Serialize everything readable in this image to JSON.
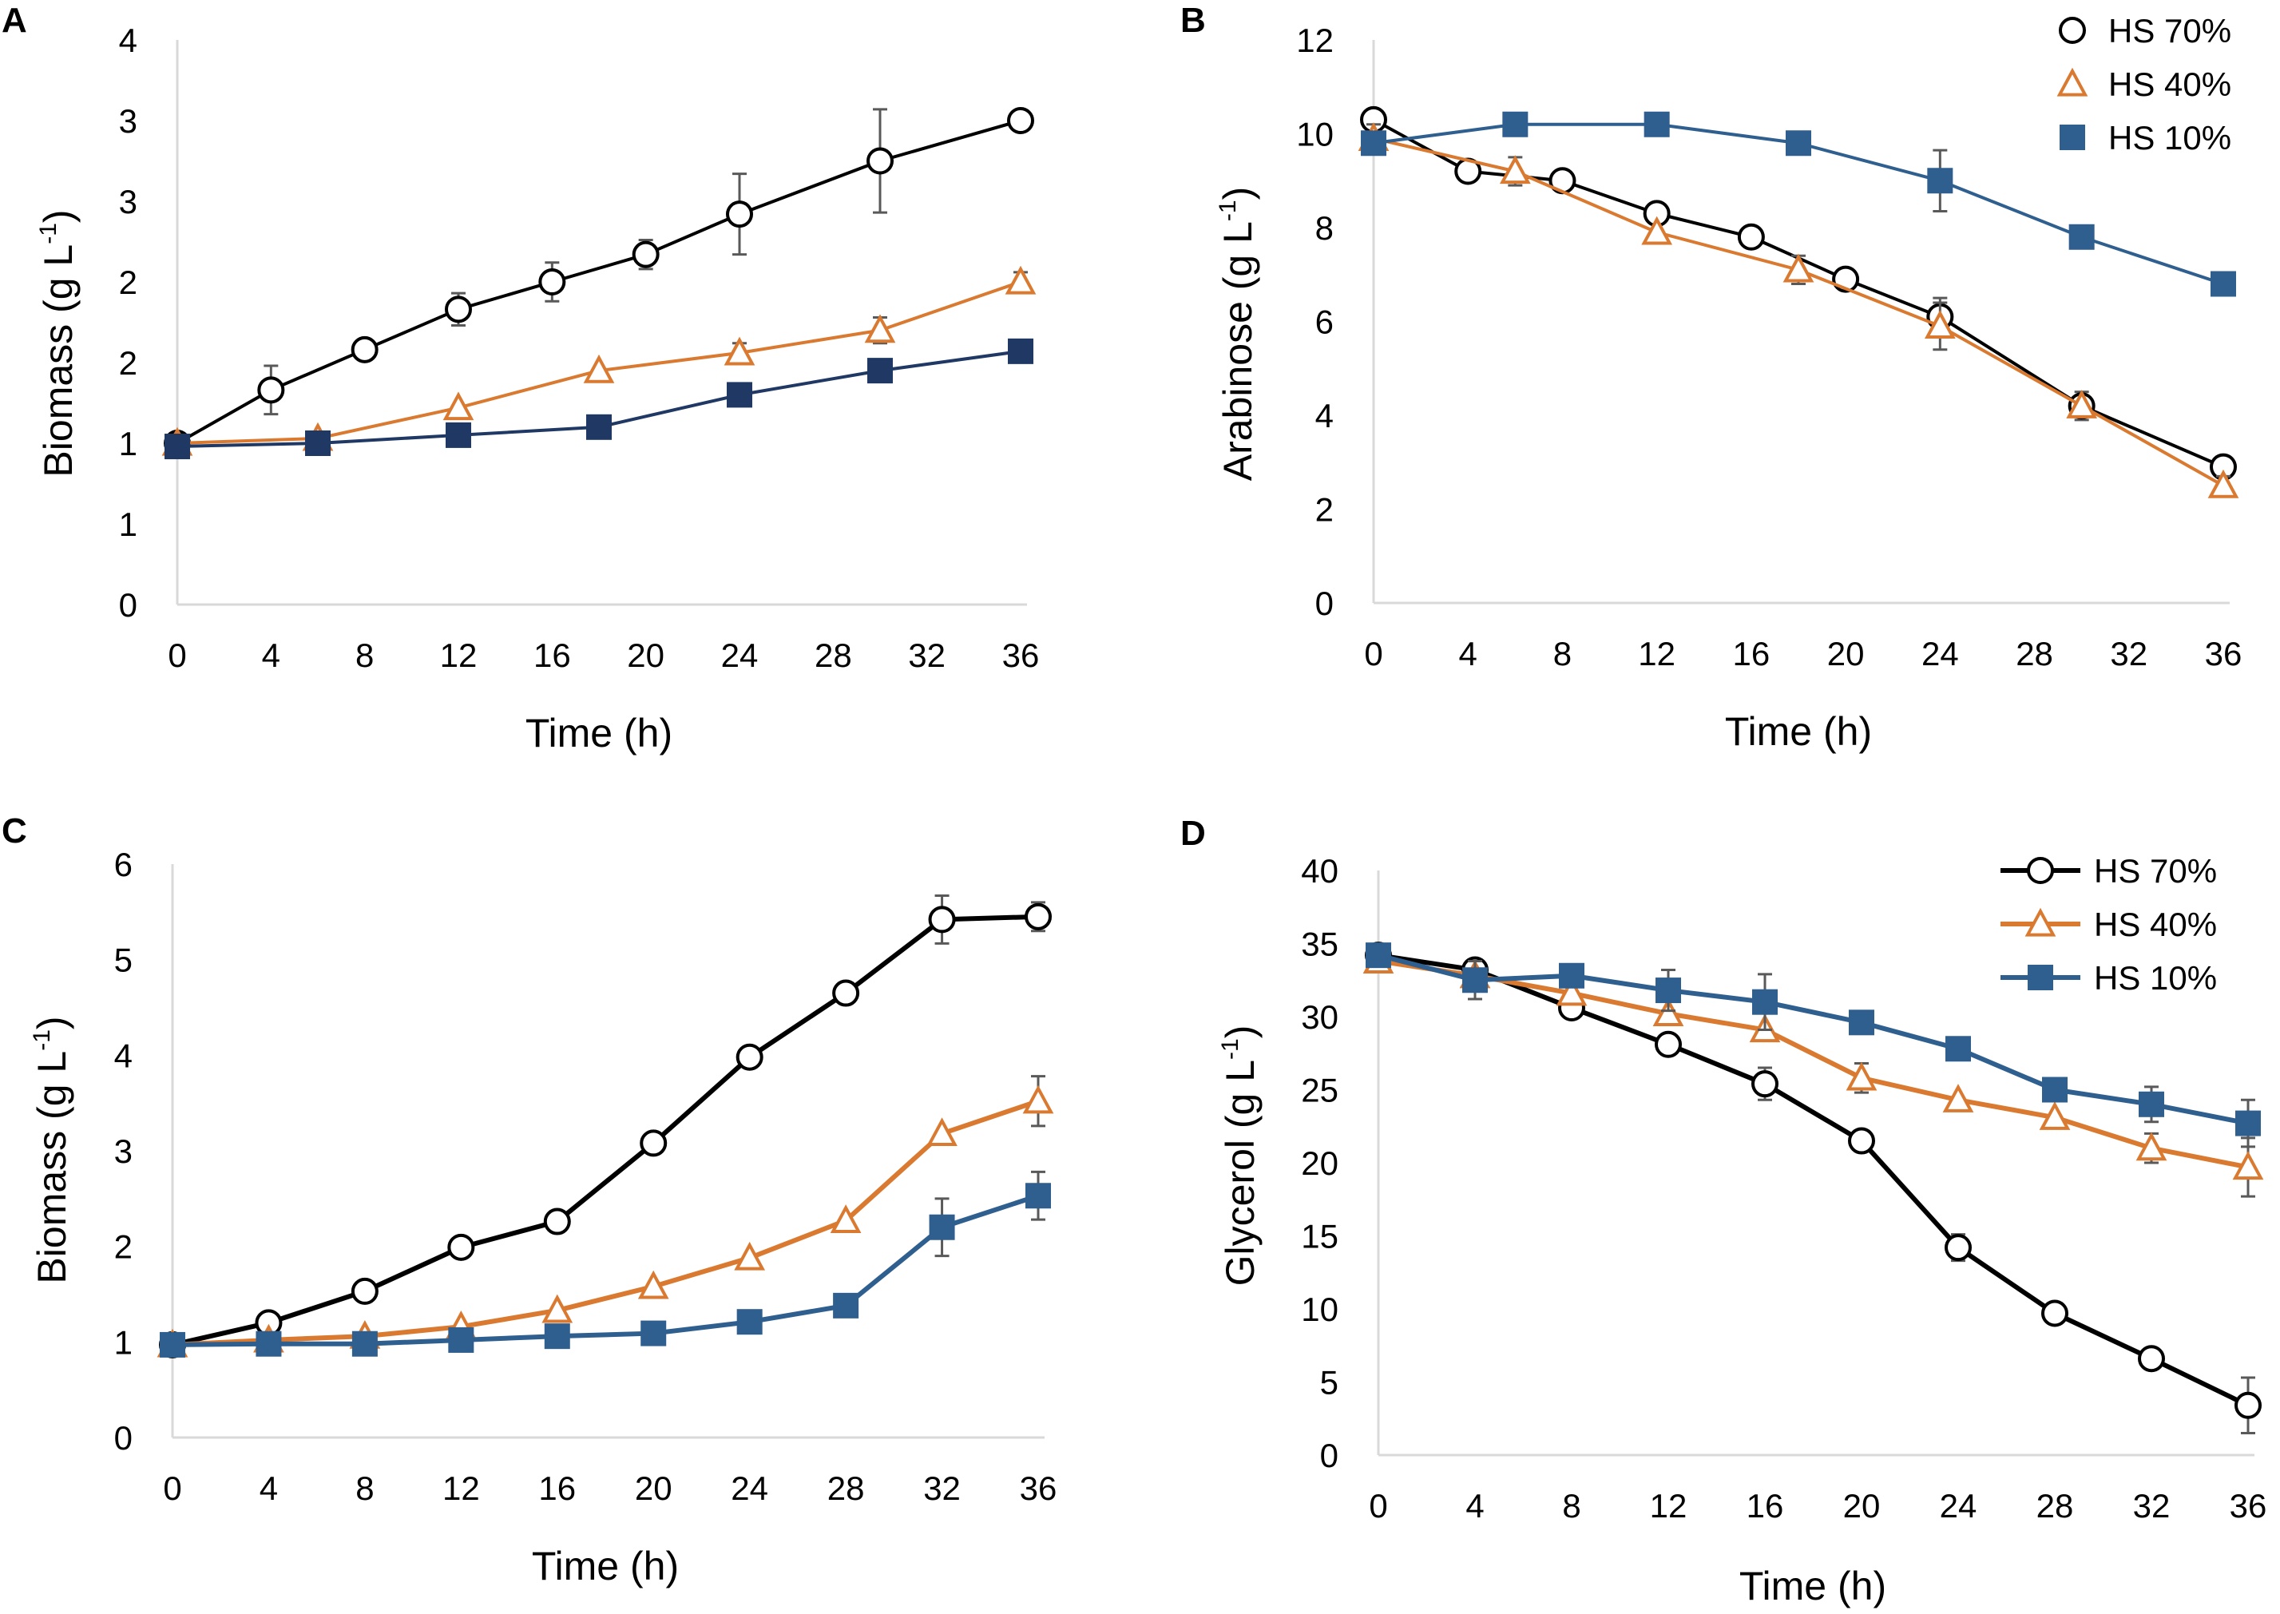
{
  "colors": {
    "hs70": "#000000",
    "hs40": "#d97a30",
    "hs10_panelA": "#1f3864",
    "hs10_other": "#2f5f8f",
    "axis": "#d9d9d9",
    "errorbar": "#595959"
  },
  "chart_data": [
    {
      "panel": "A",
      "type": "line",
      "xlabel": "Time (h)",
      "ylabel": "Biomass (g L-1)",
      "ylabel_base": "Biomass (g L",
      "ylabel_sup": "-1",
      "ylabel_close": ")",
      "xlim": [
        0,
        36
      ],
      "ylim": [
        0,
        3.5
      ],
      "x_ticks": [
        0,
        4,
        8,
        12,
        16,
        20,
        24,
        28,
        32,
        36
      ],
      "x_tick_labels": [
        "0",
        "4",
        "8",
        "12",
        "16",
        "20",
        "24",
        "28",
        "32",
        "36"
      ],
      "y_ticks": [
        0,
        0.5,
        1,
        1.5,
        2,
        2.5,
        3,
        3.5
      ],
      "y_tick_labels": [
        "0",
        "1",
        "1",
        "2",
        "2",
        "3",
        "3",
        "4"
      ],
      "legend": null,
      "series": [
        {
          "name": "HS 70%",
          "marker": "circle",
          "x": [
            0,
            4,
            8,
            12,
            16,
            20,
            24,
            30,
            36
          ],
          "y": [
            1.0,
            1.33,
            1.58,
            1.83,
            2.0,
            2.17,
            2.42,
            2.75,
            3.0
          ],
          "err": [
            0,
            0.15,
            0,
            0.1,
            0.12,
            0.09,
            0.25,
            0.32,
            0
          ]
        },
        {
          "name": "HS 40%",
          "marker": "triangle",
          "x": [
            0,
            6,
            12,
            18,
            24,
            30,
            36
          ],
          "y": [
            1.0,
            1.03,
            1.22,
            1.45,
            1.56,
            1.7,
            2.0
          ],
          "err": [
            0,
            0,
            0,
            0,
            0.06,
            0.08,
            0.06
          ]
        },
        {
          "name": "HS 10%",
          "marker": "square",
          "x": [
            0,
            6,
            12,
            18,
            24,
            30,
            36
          ],
          "y": [
            0.98,
            1.0,
            1.05,
            1.1,
            1.3,
            1.45,
            1.57
          ],
          "err": [
            0,
            0,
            0,
            0,
            0,
            0,
            0
          ]
        }
      ]
    },
    {
      "panel": "B",
      "type": "line",
      "xlabel": "Time (h)",
      "ylabel": "Arabinose (g L-1)",
      "ylabel_base": "Arabinose (g L",
      "ylabel_sup": "-1",
      "ylabel_close": ")",
      "xlim": [
        0,
        36
      ],
      "ylim": [
        0,
        12
      ],
      "x_ticks": [
        0,
        4,
        8,
        12,
        16,
        20,
        24,
        28,
        32,
        36
      ],
      "x_tick_labels": [
        "0",
        "4",
        "8",
        "12",
        "16",
        "20",
        "24",
        "28",
        "32",
        "36"
      ],
      "y_ticks": [
        0,
        2,
        4,
        6,
        8,
        10,
        12
      ],
      "y_tick_labels": [
        "0",
        "2",
        "4",
        "6",
        "8",
        "10",
        "12"
      ],
      "legend": {
        "placement": "top-right",
        "style": "markers-only",
        "entries": [
          "HS 70%",
          "HS 40%",
          "HS 10%"
        ]
      },
      "series": [
        {
          "name": "HS 70%",
          "marker": "circle",
          "x": [
            0,
            4,
            8,
            12,
            16,
            20,
            24,
            30,
            36
          ],
          "y": [
            10.3,
            9.2,
            9.0,
            8.3,
            7.8,
            6.9,
            6.1,
            4.2,
            2.9
          ],
          "err": [
            0,
            0,
            0,
            0,
            0,
            0,
            0.4,
            0.3,
            0
          ]
        },
        {
          "name": "HS 40%",
          "marker": "triangle",
          "x": [
            0,
            6,
            12,
            18,
            24,
            30,
            36
          ],
          "y": [
            9.9,
            9.2,
            7.9,
            7.1,
            5.9,
            4.2,
            2.5
          ],
          "err": [
            0.3,
            0.3,
            0,
            0.3,
            0.5,
            0,
            0.2
          ]
        },
        {
          "name": "HS 10%",
          "marker": "square",
          "x": [
            0,
            6,
            12,
            18,
            24,
            30,
            36
          ],
          "y": [
            9.8,
            10.2,
            10.2,
            9.8,
            9.0,
            7.8,
            6.8
          ],
          "err": [
            0,
            0,
            0,
            0,
            0.65,
            0,
            0
          ]
        }
      ]
    },
    {
      "panel": "C",
      "type": "line",
      "xlabel": "Time (h)",
      "ylabel": "Biomass (g L-1)",
      "ylabel_base": "Biomass (g L",
      "ylabel_sup": "-1",
      "ylabel_close": ")",
      "xlim": [
        0,
        36
      ],
      "ylim": [
        0,
        6
      ],
      "x_ticks": [
        0,
        4,
        8,
        12,
        16,
        20,
        24,
        28,
        32,
        36
      ],
      "x_tick_labels": [
        "0",
        "4",
        "8",
        "12",
        "16",
        "20",
        "24",
        "28",
        "32",
        "36"
      ],
      "y_ticks": [
        0,
        1,
        2,
        3,
        4,
        5,
        6
      ],
      "y_tick_labels": [
        "0",
        "1",
        "2",
        "3",
        "4",
        "5",
        "6"
      ],
      "legend": null,
      "series": [
        {
          "name": "HS 70%",
          "marker": "circle",
          "x": [
            0,
            4,
            8,
            12,
            16,
            20,
            24,
            28,
            32,
            36
          ],
          "y": [
            0.97,
            1.2,
            1.53,
            1.99,
            2.26,
            3.08,
            3.98,
            4.65,
            5.42,
            5.45
          ],
          "err": [
            0,
            0,
            0,
            0,
            0,
            0,
            0,
            0,
            0.25,
            0.15
          ]
        },
        {
          "name": "HS 40%",
          "marker": "triangle",
          "x": [
            0,
            4,
            8,
            12,
            16,
            20,
            24,
            28,
            32,
            36
          ],
          "y": [
            0.97,
            1.02,
            1.06,
            1.16,
            1.33,
            1.58,
            1.88,
            2.27,
            3.18,
            3.52
          ],
          "err": [
            0,
            0,
            0,
            0,
            0,
            0,
            0,
            0,
            0,
            0.26
          ]
        },
        {
          "name": "HS 10%",
          "marker": "square",
          "x": [
            0,
            4,
            8,
            12,
            16,
            20,
            24,
            28,
            32,
            36
          ],
          "y": [
            0.97,
            0.98,
            0.98,
            1.02,
            1.06,
            1.09,
            1.21,
            1.38,
            2.2,
            2.53
          ],
          "err": [
            0,
            0,
            0,
            0,
            0,
            0,
            0,
            0,
            0.3,
            0.25
          ]
        }
      ]
    },
    {
      "panel": "D",
      "type": "line",
      "xlabel": "Time (h)",
      "ylabel": "Glycerol (g L-1)",
      "ylabel_base": "Glycerol (g L",
      "ylabel_sup": "-1",
      "ylabel_close": ")",
      "xlim": [
        0,
        36
      ],
      "ylim": [
        0,
        40
      ],
      "x_ticks": [
        0,
        4,
        8,
        12,
        16,
        20,
        24,
        28,
        32,
        36
      ],
      "x_tick_labels": [
        "0",
        "4",
        "8",
        "12",
        "16",
        "20",
        "24",
        "28",
        "32",
        "36"
      ],
      "y_ticks": [
        0,
        5,
        10,
        15,
        20,
        25,
        30,
        35,
        40
      ],
      "y_tick_labels": [
        "0",
        "5",
        "10",
        "15",
        "20",
        "25",
        "30",
        "35",
        "40"
      ],
      "legend": {
        "placement": "top-right",
        "style": "line-and-marker",
        "entries": [
          "HS 70%",
          "HS 40%",
          "HS 10%"
        ]
      },
      "series": [
        {
          "name": "HS 70%",
          "marker": "circle",
          "x": [
            0,
            4,
            8,
            12,
            16,
            20,
            24,
            28,
            32,
            36
          ],
          "y": [
            34.2,
            33.2,
            30.6,
            28.1,
            25.4,
            21.5,
            14.2,
            9.7,
            6.6,
            3.4
          ],
          "err": [
            0,
            0,
            0,
            0,
            1.1,
            0,
            0.9,
            0,
            0,
            1.9
          ]
        },
        {
          "name": "HS 40%",
          "marker": "triangle",
          "x": [
            0,
            4,
            8,
            12,
            16,
            20,
            24,
            28,
            32,
            36
          ],
          "y": [
            33.8,
            32.8,
            31.6,
            30.2,
            29.1,
            25.8,
            24.3,
            23.1,
            21.0,
            19.7
          ],
          "err": [
            0,
            0,
            0,
            0,
            0,
            1.0,
            0,
            0,
            1.0,
            2.0
          ]
        },
        {
          "name": "HS 10%",
          "marker": "square",
          "x": [
            0,
            4,
            8,
            12,
            16,
            20,
            24,
            28,
            32,
            36
          ],
          "y": [
            34.2,
            32.5,
            32.8,
            31.8,
            31.0,
            29.6,
            27.8,
            25.0,
            24.0,
            22.7
          ],
          "err": [
            0,
            1.3,
            0,
            1.4,
            1.9,
            0,
            0,
            0,
            1.2,
            1.6
          ]
        }
      ]
    }
  ]
}
